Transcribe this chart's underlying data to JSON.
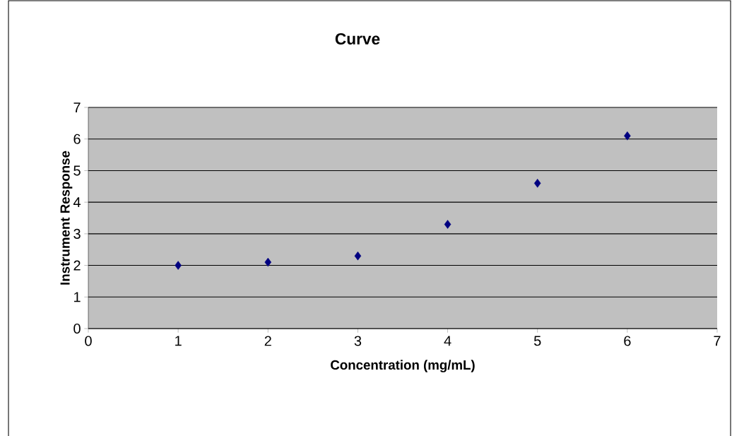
{
  "chart_data": {
    "type": "scatter",
    "title": "Curve",
    "xlabel": "Concentration (mg/mL)",
    "ylabel": "Instrument Response",
    "x": [
      1,
      2,
      3,
      4,
      5,
      6
    ],
    "series": [
      {
        "color": "#000080",
        "values": [
          2.0,
          2.1,
          2.3,
          3.3,
          4.6,
          6.1
        ]
      }
    ],
    "xlim": [
      0,
      7
    ],
    "ylim": [
      0,
      7
    ],
    "xticks": [
      0,
      1,
      2,
      3,
      4,
      5,
      6,
      7
    ],
    "yticks": [
      0,
      1,
      2,
      3,
      4,
      5,
      6,
      7
    ],
    "grid": "y",
    "marker": "diamond"
  }
}
